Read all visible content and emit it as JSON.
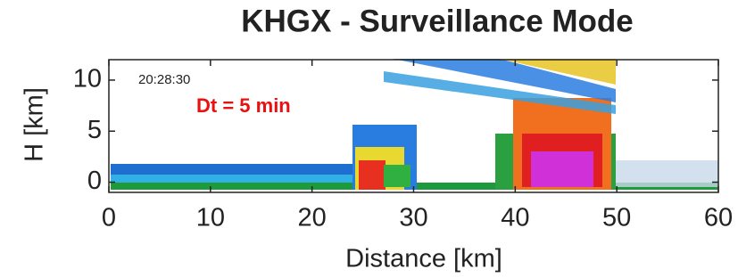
{
  "chart_data": {
    "type": "rhi",
    "title": "KHGX - Surveillance Mode",
    "xlabel": "Distance [km]",
    "ylabel": "H [km]",
    "xlim": [
      0,
      60
    ],
    "xticks": [
      0,
      10,
      20,
      30,
      40,
      50,
      60
    ],
    "ylim": [
      -1,
      12
    ],
    "yticks": [
      0,
      5,
      10
    ],
    "annotations": [
      "20:28:30",
      "Dt = 5 min"
    ]
  }
}
